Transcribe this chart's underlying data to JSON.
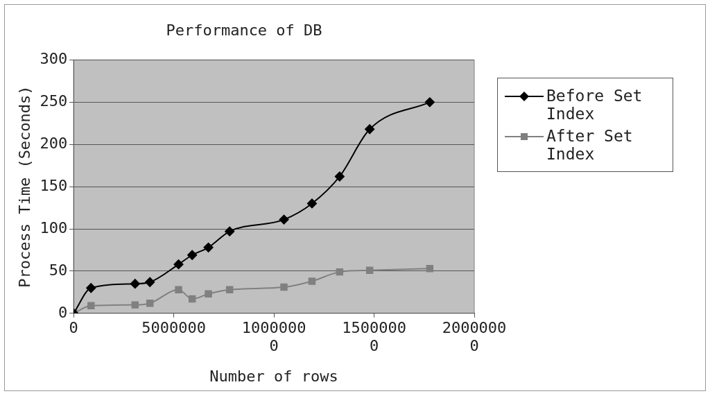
{
  "chart_data": {
    "type": "line",
    "title": "Performance of DB",
    "xlabel": "Number of rows",
    "ylabel": "Process Time (Seconds)",
    "x": [
      0,
      870000,
      3070000,
      3810000,
      5240000,
      5920000,
      6730000,
      7790000,
      10500000,
      11900000,
      13280000,
      14780000,
      17780000
    ],
    "series": [
      {
        "name": "Before Set Index",
        "color": "#000000",
        "marker": "diamond",
        "values": [
          0,
          30,
          35,
          37,
          58,
          69,
          78,
          97,
          111,
          130,
          162,
          218,
          250
        ]
      },
      {
        "name": "After Set Index",
        "color": "#808080",
        "marker": "square",
        "values": [
          0,
          9,
          10,
          12,
          28,
          17,
          23,
          28,
          31,
          38,
          49,
          51,
          53
        ]
      }
    ],
    "xlim": [
      0,
      20000000
    ],
    "xticks": [
      0,
      5000000,
      10000000,
      15000000,
      20000000
    ],
    "ylim": [
      0,
      300
    ],
    "yticks": [
      0,
      50,
      100,
      150,
      200,
      250,
      300
    ],
    "grid": "y",
    "legend": "right",
    "line_style": "solid"
  }
}
